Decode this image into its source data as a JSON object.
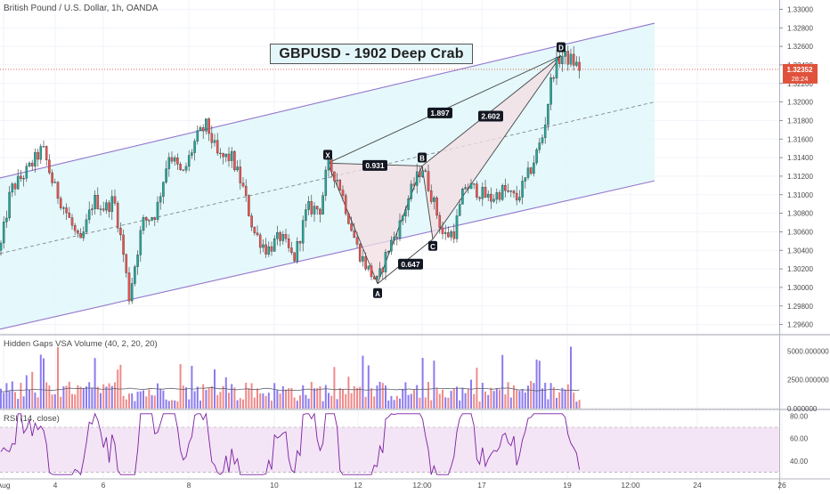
{
  "header": {
    "symbol_title": "British Pound / U.S. Dollar, 1h, OANDA",
    "banner": "GBPUSD - 1902 Deep Crab"
  },
  "price_axis": {
    "ticks": [
      "1.33000",
      "1.32800",
      "1.32600",
      "1.32400",
      "1.32200",
      "1.32000",
      "1.31800",
      "1.31600",
      "1.31400",
      "1.31200",
      "1.31000",
      "1.30800",
      "1.30600",
      "1.30400",
      "1.30200",
      "1.30000",
      "1.29800",
      "1.29600"
    ],
    "current_price": "1.32352",
    "countdown": "28:24"
  },
  "time_axis": {
    "labels": [
      "Aug",
      "4",
      "6",
      "8",
      "10",
      "12",
      "12:00",
      "17",
      "19",
      "12:00",
      "24",
      "26"
    ]
  },
  "pattern": {
    "points": [
      {
        "label": "X",
        "price": 1.3134
      },
      {
        "label": "A",
        "price": 1.3004
      },
      {
        "label": "B",
        "price": 1.3131
      },
      {
        "label": "C",
        "price": 1.3052
      },
      {
        "label": "D",
        "price": 1.325
      }
    ],
    "ratios": [
      {
        "name": "xb",
        "value": "0.931"
      },
      {
        "name": "ac",
        "value": "0.647"
      },
      {
        "name": "xd",
        "value": "1.897"
      },
      {
        "name": "bd",
        "value": "2.602"
      }
    ]
  },
  "volume": {
    "title": "Hidden Gaps VSA Volume (40, 2, 20, 20)",
    "ticks": [
      "5000.000000",
      "2500.000000",
      "0.000000"
    ]
  },
  "rsi": {
    "title": "RSI (14, close)",
    "ticks": [
      "80.00",
      "60.00",
      "40.00"
    ],
    "upper_band": 70,
    "lower_band": 30
  },
  "colors": {
    "bull": "#26a69a",
    "bear": "#ef5350",
    "channel_line": "#9575cd",
    "channel_fill": "#e0f7fa",
    "pattern_fill": "#f3dde3",
    "rsi_band": "#f3e5f5",
    "rsi_line": "#7b1fa2",
    "price_marker": "#e0523b",
    "volume_bull": "#8c7cf0",
    "volume_bear": "#ef8a8a"
  },
  "chart_data": {
    "type": "candlestick",
    "symbol": "British Pound / U.S. Dollar, 1h, OANDA",
    "x_labels": [
      "Aug",
      "4",
      "6",
      "8",
      "10",
      "12",
      "12:00",
      "17",
      "19",
      "12:00",
      "24",
      "26"
    ],
    "ylim": [
      1.295,
      1.331
    ],
    "y_ticks": [
      1.296,
      1.298,
      1.3,
      1.302,
      1.304,
      1.306,
      1.308,
      1.31,
      1.312,
      1.314,
      1.316,
      1.318,
      1.32,
      1.322,
      1.324,
      1.326,
      1.328,
      1.33
    ],
    "path_anchors": [
      [
        0,
        1.304
      ],
      [
        12,
        1.3105
      ],
      [
        30,
        1.3125
      ],
      [
        48,
        1.315
      ],
      [
        60,
        1.311
      ],
      [
        75,
        1.308
      ],
      [
        90,
        1.3045
      ],
      [
        105,
        1.3095
      ],
      [
        118,
        1.3085
      ],
      [
        128,
        1.3095
      ],
      [
        138,
        1.304
      ],
      [
        145,
        1.299
      ],
      [
        160,
        1.307
      ],
      [
        175,
        1.308
      ],
      [
        190,
        1.3145
      ],
      [
        205,
        1.312
      ],
      [
        220,
        1.316
      ],
      [
        232,
        1.3175
      ],
      [
        245,
        1.314
      ],
      [
        260,
        1.314
      ],
      [
        272,
        1.311
      ],
      [
        285,
        1.306
      ],
      [
        300,
        1.304
      ],
      [
        315,
        1.3055
      ],
      [
        330,
        1.303
      ],
      [
        345,
        1.3085
      ],
      [
        360,
        1.3085
      ],
      [
        368,
        1.3133
      ],
      [
        380,
        1.3115
      ],
      [
        390,
        1.308
      ],
      [
        402,
        1.304
      ],
      [
        413,
        1.302
      ],
      [
        424,
        1.3005
      ],
      [
        435,
        1.304
      ],
      [
        448,
        1.3065
      ],
      [
        460,
        1.31
      ],
      [
        474,
        1.3131
      ],
      [
        486,
        1.3095
      ],
      [
        498,
        1.3055
      ],
      [
        510,
        1.306
      ],
      [
        522,
        1.311
      ],
      [
        535,
        1.3105
      ],
      [
        550,
        1.3095
      ],
      [
        565,
        1.3105
      ],
      [
        580,
        1.3095
      ],
      [
        595,
        1.3125
      ],
      [
        610,
        1.3165
      ],
      [
        620,
        1.323
      ],
      [
        630,
        1.325
      ],
      [
        642,
        1.3245
      ],
      [
        652,
        1.3235
      ]
    ],
    "channel": {
      "lower": [
        [
          0,
          1.2955
        ],
        [
          735,
          1.3115
        ]
      ],
      "upper": [
        [
          0,
          1.3118
        ],
        [
          735,
          1.3285
        ]
      ],
      "mid_extends_to": 735
    },
    "current_price": 1.32352,
    "volume": {
      "ylim": [
        0,
        6200
      ],
      "ticks": [
        5000,
        2500,
        0
      ]
    },
    "rsi": {
      "ylim": [
        25,
        85
      ],
      "ticks": [
        80,
        60,
        40
      ],
      "bands": [
        30,
        70
      ]
    }
  }
}
